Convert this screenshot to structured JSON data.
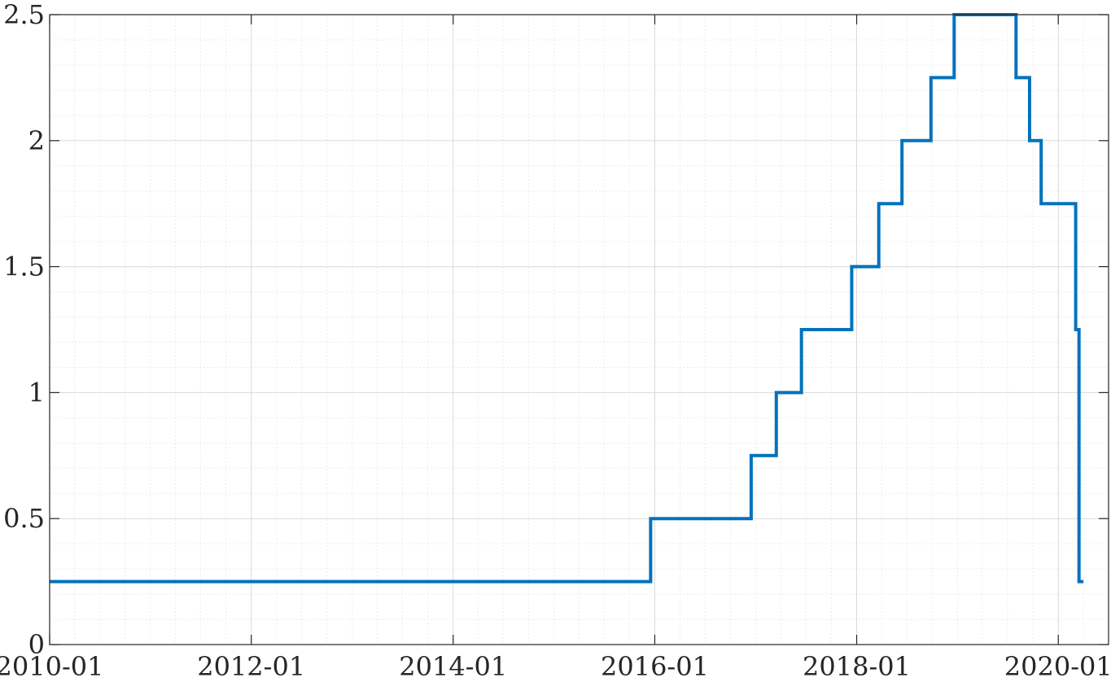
{
  "chart_data": {
    "type": "line",
    "step": true,
    "title": "",
    "xlabel": "",
    "ylabel": "",
    "grid": true,
    "minor_grid": true,
    "xlim": [
      "2010-01-01",
      "2020-07-01"
    ],
    "ylim": [
      0,
      2.5
    ],
    "xticks": [
      {
        "date": "2010-01-01",
        "label": "2010-01"
      },
      {
        "date": "2012-01-01",
        "label": "2012-01"
      },
      {
        "date": "2014-01-01",
        "label": "2014-01"
      },
      {
        "date": "2016-01-01",
        "label": "2016-01"
      },
      {
        "date": "2018-01-01",
        "label": "2018-01"
      },
      {
        "date": "2020-01-01",
        "label": "2020-01"
      }
    ],
    "yticks": [
      {
        "value": 0,
        "label": "0"
      },
      {
        "value": 0.5,
        "label": "0.5"
      },
      {
        "value": 1,
        "label": "1"
      },
      {
        "value": 1.5,
        "label": "1.5"
      },
      {
        "value": 2,
        "label": "2"
      },
      {
        "value": 2.5,
        "label": "2.5"
      }
    ],
    "series": [
      {
        "color": "#0072bd",
        "x": [
          "2010-01-01",
          "2015-12-17",
          "2016-12-15",
          "2017-03-16",
          "2017-06-15",
          "2017-12-14",
          "2018-03-22",
          "2018-06-14",
          "2018-09-27",
          "2018-12-20",
          "2019-08-01",
          "2019-09-19",
          "2019-10-31",
          "2020-03-04",
          "2020-03-16",
          "2020-04-01"
        ],
        "y": [
          0.25,
          0.5,
          0.75,
          1.0,
          1.25,
          1.5,
          1.75,
          2.0,
          2.25,
          2.5,
          2.25,
          2.0,
          1.75,
          1.25,
          0.25,
          0.25
        ]
      }
    ]
  }
}
